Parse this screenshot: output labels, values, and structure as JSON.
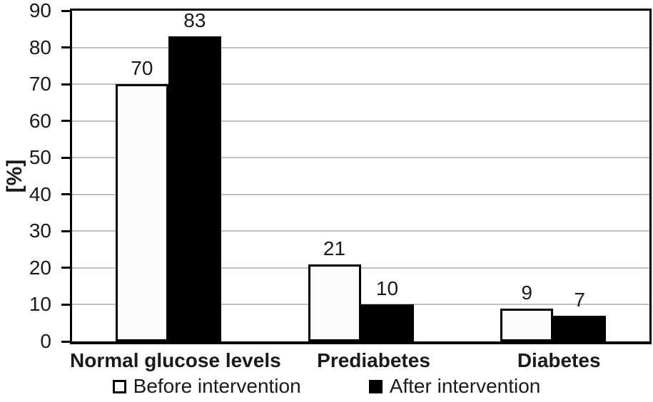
{
  "chart_data": {
    "type": "bar",
    "title": "",
    "xlabel": "",
    "ylabel": "[%]",
    "categories": [
      "Normal glucose levels",
      "Prediabetes",
      "Diabetes"
    ],
    "series": [
      {
        "name": "Before intervention",
        "values": [
          70,
          21,
          9
        ],
        "fill": "#fbfbfb",
        "outline": "#000000"
      },
      {
        "name": "After intervention",
        "values": [
          83,
          10,
          7
        ],
        "fill": "#000000",
        "outline": null
      }
    ],
    "ylim": [
      0,
      90
    ],
    "yticks": [
      0,
      10,
      20,
      30,
      40,
      50,
      60,
      70,
      80,
      90
    ],
    "grid": true,
    "legend_position": "bottom",
    "bar_labels": true
  },
  "colors": {
    "gridline": "#bfbfbf",
    "axis": "#000000",
    "text": "#1a1a1a",
    "background": "#ffffff"
  }
}
